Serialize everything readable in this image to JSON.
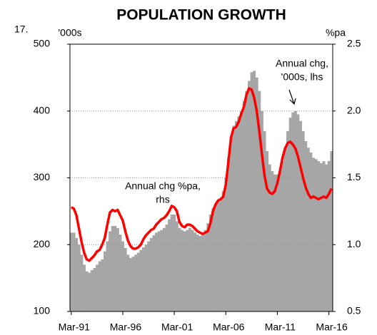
{
  "chart_data": {
    "type": "bar_line",
    "figure_number": "17.",
    "title": "POPULATION GROWTH",
    "y_label": "'000s",
    "y2_label": "%pa",
    "categories": [
      "Mar-91",
      null,
      null,
      null,
      null,
      null,
      null,
      null,
      null,
      null,
      null,
      null,
      null,
      null,
      null,
      null,
      null,
      null,
      null,
      null,
      "Mar-96",
      null,
      null,
      null,
      null,
      null,
      null,
      null,
      null,
      null,
      null,
      null,
      null,
      null,
      null,
      null,
      null,
      null,
      null,
      null,
      "Mar-01",
      null,
      null,
      null,
      null,
      null,
      null,
      null,
      null,
      null,
      null,
      null,
      null,
      null,
      null,
      null,
      null,
      null,
      null,
      null,
      "Mar-06",
      null,
      null,
      null,
      null,
      null,
      null,
      null,
      null,
      null,
      null,
      null,
      null,
      null,
      null,
      null,
      null,
      null,
      null,
      null,
      "Mar-11",
      null,
      null,
      null,
      null,
      null,
      null,
      null,
      null,
      null,
      null,
      null,
      null,
      null,
      null,
      null,
      null,
      null,
      null,
      null,
      "Mar-16",
      null
    ],
    "series": [
      {
        "name": "Annual chg, '000s, lhs",
        "type": "bar",
        "color": "#a6a6a6",
        "values": [
          218,
          218,
          210,
          200,
          185,
          170,
          160,
          158,
          162,
          165,
          170,
          175,
          178,
          190,
          205,
          220,
          228,
          228,
          225,
          215,
          205,
          195,
          185,
          180,
          182,
          185,
          188,
          192,
          196,
          200,
          205,
          210,
          214,
          218,
          220,
          222,
          225,
          230,
          238,
          245,
          245,
          235,
          225,
          222,
          220,
          222,
          225,
          222,
          218,
          215,
          213,
          215,
          222,
          232,
          245,
          255,
          260,
          265,
          270,
          280,
          300,
          330,
          360,
          378,
          385,
          392,
          400,
          415,
          430,
          445,
          458,
          460,
          450,
          430,
          400,
          370,
          340,
          320,
          310,
          305,
          305,
          310,
          325,
          345,
          370,
          390,
          398,
          400,
          395,
          385,
          370,
          355,
          345,
          338,
          330,
          328,
          325,
          322,
          325,
          320,
          325,
          340
        ]
      },
      {
        "name": "Annual chg %pa, rhs",
        "type": "line",
        "axis": "y2",
        "color": "#ff0000",
        "values": [
          1.28,
          1.27,
          1.22,
          1.12,
          1.02,
          0.94,
          0.89,
          0.88,
          0.9,
          0.92,
          0.95,
          0.96,
          1.0,
          1.05,
          1.15,
          1.24,
          1.26,
          1.25,
          1.26,
          1.22,
          1.18,
          1.1,
          1.03,
          0.99,
          0.97,
          0.97,
          0.98,
          1.0,
          1.04,
          1.07,
          1.09,
          1.11,
          1.12,
          1.15,
          1.17,
          1.19,
          1.2,
          1.22,
          1.25,
          1.29,
          1.28,
          1.25,
          1.17,
          1.14,
          1.13,
          1.15,
          1.15,
          1.14,
          1.12,
          1.1,
          1.09,
          1.08,
          1.09,
          1.1,
          1.16,
          1.25,
          1.3,
          1.33,
          1.34,
          1.36,
          1.45,
          1.62,
          1.8,
          1.87,
          1.88,
          1.92,
          1.98,
          2.03,
          2.12,
          2.17,
          2.16,
          2.1,
          2.0,
          1.85,
          1.68,
          1.52,
          1.42,
          1.39,
          1.38,
          1.4,
          1.46,
          1.55,
          1.65,
          1.72,
          1.76,
          1.77,
          1.75,
          1.72,
          1.66,
          1.58,
          1.5,
          1.43,
          1.38,
          1.35,
          1.36,
          1.35,
          1.34,
          1.35,
          1.36,
          1.35,
          1.38,
          1.42
        ]
      }
    ],
    "annotations": [
      {
        "lines": [
          "Annual chg,",
          "'000s, lhs"
        ],
        "color": "#000000"
      },
      {
        "lines": [
          "Annual chg %pa,",
          "rhs"
        ],
        "color": "#ff0000"
      }
    ],
    "ylim": [
      100,
      500
    ],
    "yticks": [
      100,
      200,
      300,
      400,
      500
    ],
    "y2lim": [
      0.5,
      2.5
    ],
    "y2ticks": [
      0.5,
      {
        "value": 1,
        "label": "1.0"
      },
      1.5,
      {
        "value": 2,
        "label": "2.0"
      },
      2.5
    ],
    "grid": true
  }
}
